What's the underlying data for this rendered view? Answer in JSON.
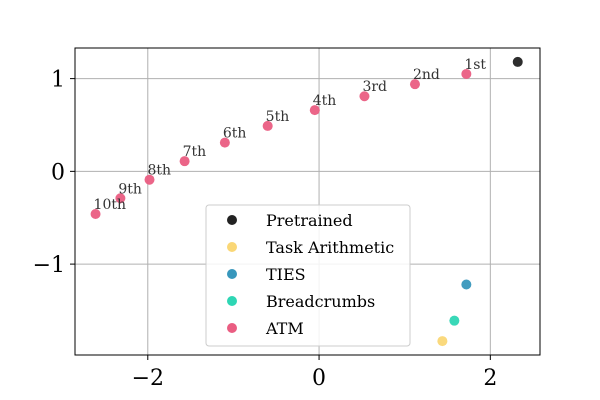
{
  "chart_data": {
    "type": "scatter",
    "title": "",
    "xlabel": "",
    "ylabel": "",
    "xlim": [
      -2.85,
      2.58
    ],
    "ylim": [
      -1.98,
      1.33
    ],
    "grid": true,
    "legend_placement": "lower-center",
    "xticks": [
      {
        "value": -2,
        "label": "−2"
      },
      {
        "value": 0,
        "label": "0"
      },
      {
        "value": 2,
        "label": "2"
      }
    ],
    "yticks": [
      {
        "value": 1,
        "label": "1"
      },
      {
        "value": 0,
        "label": "0"
      },
      {
        "value": -1,
        "label": "−1"
      }
    ],
    "series": [
      {
        "name": "Pretrained",
        "color": "#222222",
        "points": [
          {
            "x": 2.32,
            "y": 1.18,
            "label": ""
          }
        ]
      },
      {
        "name": "Task Arithmetic",
        "color": "#fad776",
        "points": [
          {
            "x": 1.44,
            "y": -1.83,
            "label": ""
          }
        ]
      },
      {
        "name": "TIES",
        "color": "#3897bc",
        "points": [
          {
            "x": 1.72,
            "y": -1.22,
            "label": ""
          }
        ]
      },
      {
        "name": "Breadcrumbs",
        "color": "#2ed6b4",
        "points": [
          {
            "x": 1.58,
            "y": -1.61,
            "label": ""
          }
        ]
      },
      {
        "name": "ATM",
        "color": "#ea5d82",
        "points": [
          {
            "x": 1.72,
            "y": 1.05,
            "label": "1st"
          },
          {
            "x": 1.12,
            "y": 0.94,
            "label": "2nd"
          },
          {
            "x": 0.53,
            "y": 0.81,
            "label": "3rd"
          },
          {
            "x": -0.05,
            "y": 0.66,
            "label": "4th"
          },
          {
            "x": -0.6,
            "y": 0.49,
            "label": "5th"
          },
          {
            "x": -1.1,
            "y": 0.31,
            "label": "6th"
          },
          {
            "x": -1.57,
            "y": 0.11,
            "label": "7th"
          },
          {
            "x": -1.98,
            "y": -0.09,
            "label": "8th"
          },
          {
            "x": -2.32,
            "y": -0.29,
            "label": "9th"
          },
          {
            "x": -2.61,
            "y": -0.46,
            "label": "10th"
          }
        ]
      }
    ]
  }
}
